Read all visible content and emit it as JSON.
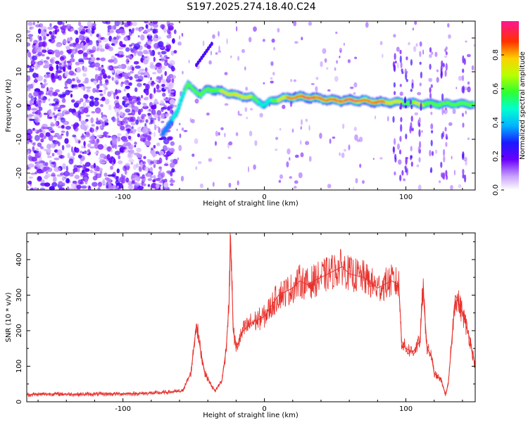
{
  "chart_data": [
    {
      "type": "heatmap",
      "title": "S197.2025.274.18.40.C24",
      "xlabel": "Height of straight line (km)",
      "ylabel": "Frequency (Hz)",
      "xlim": [
        -168,
        149
      ],
      "ylim": [
        -25,
        25
      ],
      "xticks": [
        -100,
        0,
        100
      ],
      "yticks": [
        -20,
        -10,
        0,
        10,
        20
      ],
      "colorbar": {
        "label": "Normalized spectral amplitude",
        "range": [
          0,
          1
        ],
        "ticks": [
          0.0,
          0.2,
          0.4,
          0.6,
          0.8
        ]
      },
      "ridge": {
        "x": [
          -72,
          -66,
          -62,
          -58,
          -54,
          -50,
          -45,
          -40,
          -35,
          -28,
          -20,
          -10,
          -3,
          0,
          5,
          12,
          20,
          30,
          40,
          50,
          60,
          70,
          80,
          90,
          100,
          110,
          120,
          130,
          140,
          148
        ],
        "freq": [
          -8,
          -5,
          -2,
          3,
          6,
          5,
          3,
          5,
          4.5,
          4,
          3,
          2.5,
          1,
          0,
          1.5,
          2,
          2.5,
          2.5,
          2,
          1.5,
          1.5,
          1.5,
          1,
          1,
          1,
          0.5,
          0.5,
          0.5,
          0.5,
          0.5
        ],
        "amplitude": [
          0.3,
          0.4,
          0.5,
          0.5,
          0.6,
          0.55,
          0.6,
          0.6,
          0.65,
          0.7,
          0.75,
          0.7,
          0.5,
          0.4,
          0.55,
          0.75,
          0.85,
          0.95,
          0.85,
          0.85,
          0.95,
          0.9,
          0.85,
          0.75,
          0.65,
          0.7,
          0.6,
          0.55,
          0.6,
          0.55
        ]
      },
      "noise_region": {
        "x_range": [
          -168,
          -63
        ],
        "amplitude": 0.2
      }
    },
    {
      "type": "line",
      "xlabel": "Height of straight line (km)",
      "ylabel": "SNR (10 * v/v)",
      "xlim": [
        -168,
        149
      ],
      "ylim": [
        0,
        475
      ],
      "xticks": [
        -100,
        0,
        100
      ],
      "yticks": [
        0,
        100,
        200,
        300,
        400
      ],
      "series": [
        {
          "name": "SNR",
          "color": "#e8312c",
          "x": [
            -168,
            -150,
            -130,
            -110,
            -90,
            -75,
            -65,
            -58,
            -52,
            -50,
            -48,
            -45,
            -42,
            -38,
            -35,
            -30,
            -27,
            -25,
            -24,
            -22,
            -20,
            -15,
            -10,
            -5,
            0,
            5,
            10,
            15,
            20,
            25,
            30,
            40,
            50,
            55,
            60,
            70,
            80,
            90,
            95,
            97,
            100,
            105,
            110,
            112,
            115,
            118,
            120,
            125,
            128,
            130,
            135,
            138,
            140,
            145,
            149
          ],
          "y": [
            20,
            22,
            21,
            22,
            23,
            25,
            28,
            30,
            80,
            150,
            220,
            140,
            80,
            50,
            30,
            60,
            150,
            280,
            470,
            200,
            150,
            200,
            220,
            230,
            240,
            270,
            300,
            310,
            320,
            340,
            330,
            350,
            370,
            380,
            360,
            350,
            320,
            340,
            330,
            170,
            150,
            140,
            170,
            320,
            150,
            130,
            80,
            60,
            20,
            50,
            300,
            270,
            250,
            180,
            100
          ]
        }
      ]
    }
  ],
  "colors": {
    "line": "#e8312c",
    "axis": "#000000",
    "background": "#ffffff"
  }
}
